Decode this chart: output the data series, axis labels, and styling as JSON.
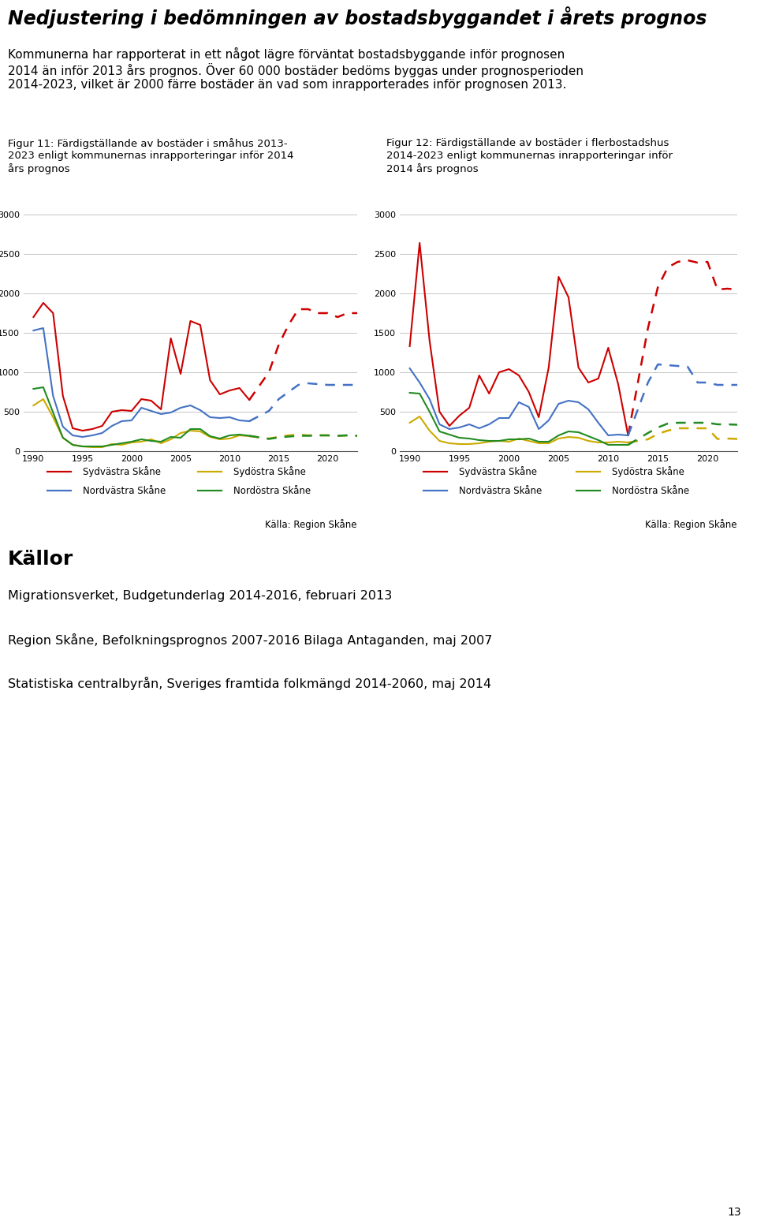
{
  "title": "Nedjustering i bedömningen av bostadsbyggandet i årets prognos",
  "paragraph_lines": [
    "Kommunerna har rapporterat in ett något lägre förväntat bostadsbyggande inför prognosen",
    "2014 än inför 2013 års prognos. Över 60 000 bostäder bedöms byggas under prognosperioden",
    "2014-2023, vilket är 2000 färre bostäder än vad som inrapporterades inför prognosen 2013."
  ],
  "fig11_title_lines": [
    "Figur 11: Färdigställande av bostäder i småhus 2013-",
    "2023 enligt kommunernas inrapporteringar inför 2014",
    "års prognos"
  ],
  "fig12_title_lines": [
    "Figur 12: Färdigställande av bostäder i flerbostadshus",
    "2014-2023 enligt kommunernas inrapporteringar inför",
    "2014 års prognos"
  ],
  "source": "Källa: Region Skåne",
  "kallor_title": "Källor",
  "references": [
    "Migrationsverket, Budgetunderlag 2014-2016, februari 2013",
    "Region Skåne, Befolkningsprognos 2007-2016 Bilaga Antaganden, maj 2007",
    "Statistiska centralbyrån, Sveriges framtida folkmängd 2014-2060, maj 2014"
  ],
  "page_number": "13",
  "years_hist": [
    1990,
    1991,
    1992,
    1993,
    1994,
    1995,
    1996,
    1997,
    1998,
    1999,
    2000,
    2001,
    2002,
    2003,
    2004,
    2005,
    2006,
    2007,
    2008,
    2009,
    2010,
    2011,
    2012
  ],
  "years_proj": [
    2013,
    2014,
    2015,
    2016,
    2017,
    2018,
    2019,
    2020,
    2021,
    2022,
    2023
  ],
  "fig11": {
    "sydvastra_hist": [
      1700,
      1880,
      1750,
      700,
      290,
      260,
      280,
      320,
      500,
      520,
      510,
      660,
      640,
      530,
      1430,
      980,
      1650,
      1600,
      900,
      720,
      770,
      800,
      650
    ],
    "sydvastra_proj": [
      null,
      1000,
      1350,
      1600,
      1800,
      1800,
      1750,
      1750,
      1700,
      1750,
      1750
    ],
    "sydostra_hist": [
      580,
      660,
      430,
      170,
      80,
      60,
      50,
      50,
      90,
      80,
      110,
      120,
      150,
      100,
      150,
      230,
      260,
      250,
      180,
      150,
      160,
      200,
      190
    ],
    "sydostra_proj": [
      null,
      160,
      180,
      200,
      210,
      200,
      200,
      200,
      195,
      200,
      195
    ],
    "nordvastra_hist": [
      1530,
      1560,
      700,
      310,
      200,
      180,
      200,
      230,
      320,
      380,
      390,
      550,
      510,
      470,
      490,
      550,
      580,
      520,
      430,
      420,
      430,
      390,
      380
    ],
    "nordvastra_proj": [
      null,
      510,
      660,
      750,
      840,
      860,
      850,
      840,
      840,
      840,
      840
    ],
    "nordostra_hist": [
      790,
      810,
      490,
      170,
      80,
      60,
      60,
      60,
      80,
      100,
      120,
      150,
      130,
      120,
      180,
      170,
      280,
      280,
      190,
      160,
      200,
      210,
      195
    ],
    "nordostra_proj": [
      null,
      155,
      175,
      185,
      195,
      195,
      200,
      200,
      195,
      200,
      195
    ]
  },
  "fig12": {
    "sydvastra_hist": [
      1330,
      2640,
      1400,
      500,
      320,
      450,
      550,
      960,
      730,
      1000,
      1040,
      960,
      750,
      430,
      1060,
      2210,
      1950,
      1060,
      870,
      920,
      1310,
      850,
      200
    ],
    "sydvastra_proj": [
      null,
      1560,
      2080,
      2330,
      2400,
      2420,
      2390,
      2400,
      2050,
      2060,
      2050
    ],
    "sydostra_hist": [
      360,
      440,
      260,
      130,
      100,
      90,
      90,
      100,
      120,
      130,
      120,
      160,
      130,
      100,
      100,
      160,
      180,
      170,
      130,
      110,
      110,
      120,
      110
    ],
    "sydostra_proj": [
      null,
      150,
      220,
      260,
      290,
      290,
      290,
      290,
      155,
      160,
      155
    ],
    "nordvastra_hist": [
      1050,
      870,
      660,
      340,
      280,
      300,
      340,
      290,
      340,
      420,
      420,
      620,
      560,
      280,
      390,
      600,
      640,
      620,
      530,
      360,
      200,
      210,
      200
    ],
    "nordvastra_proj": [
      null,
      870,
      1100,
      1090,
      1080,
      1070,
      870,
      870,
      840,
      840,
      840
    ],
    "nordostra_hist": [
      740,
      730,
      500,
      250,
      210,
      170,
      160,
      140,
      130,
      130,
      150,
      150,
      160,
      120,
      120,
      200,
      250,
      240,
      190,
      140,
      80,
      80,
      80
    ],
    "nordostra_proj": [
      null,
      230,
      300,
      350,
      360,
      360,
      360,
      360,
      340,
      340,
      335
    ]
  },
  "colors": {
    "sydvastra": "#cc0000",
    "sydostra": "#ccaa00",
    "nordvastra": "#4472c4",
    "nordostra": "#228b22"
  },
  "ylim": [
    0,
    3000
  ],
  "yticks": [
    0,
    500,
    1000,
    1500,
    2000,
    2500,
    3000
  ],
  "xticks": [
    1990,
    1995,
    2000,
    2005,
    2010,
    2015,
    2020
  ],
  "xlim": [
    1989,
    2023
  ]
}
